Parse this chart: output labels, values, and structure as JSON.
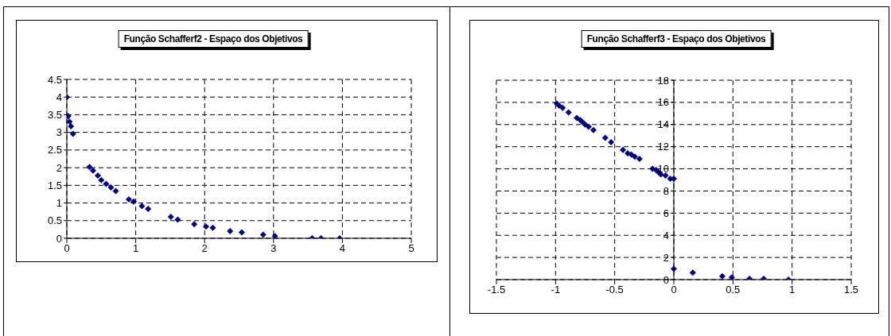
{
  "chart_data": [
    {
      "type": "scatter",
      "title": "Função Schafferf2 - Espaço dos Objetivos",
      "color": "#000080",
      "marker": "diamond",
      "grid": true,
      "x": [
        0,
        0.02,
        0.04,
        0.06,
        0.09,
        0.33,
        0.38,
        0.45,
        0.5,
        0.57,
        0.64,
        0.71,
        0.9,
        0.97,
        1.09,
        1.18,
        1.51,
        1.61,
        1.85,
        2.02,
        2.12,
        2.37,
        2.54,
        2.85,
        3.02,
        3.56,
        3.69,
        3.96
      ],
      "values": [
        4,
        3.46,
        3.3,
        3.17,
        2.96,
        2.02,
        1.92,
        1.78,
        1.65,
        1.54,
        1.44,
        1.34,
        1.1,
        1.04,
        0.91,
        0.83,
        0.61,
        0.53,
        0.4,
        0.33,
        0.3,
        0.2,
        0.17,
        0.1,
        0.06,
        0,
        0,
        0
      ],
      "xlim": [
        0,
        5
      ],
      "xticks": [
        0,
        1,
        2,
        3,
        4,
        5
      ],
      "ylim": [
        0,
        4.5
      ],
      "yticks": [
        0,
        0.5,
        1,
        1.5,
        2,
        2.5,
        3,
        3.5,
        4,
        4.5
      ]
    },
    {
      "type": "scatter",
      "title": "Função Schafferf3 - Espaço dos Objetivos",
      "color": "#000080",
      "marker": "diamond",
      "grid": true,
      "x": [
        -0.99,
        -0.97,
        -0.94,
        -0.89,
        -0.82,
        -0.79,
        -0.77,
        -0.75,
        -0.72,
        -0.68,
        -0.58,
        -0.53,
        -0.43,
        -0.39,
        -0.36,
        -0.33,
        -0.29,
        -0.18,
        -0.15,
        -0.13,
        -0.11,
        -0.07,
        -0.03,
        0,
        0,
        0.16,
        0.41,
        0.49,
        0.64,
        0.76,
        0.97
      ],
      "values": [
        15.9,
        15.7,
        15.5,
        15.1,
        14.6,
        14.4,
        14.2,
        14,
        13.8,
        13.5,
        12.8,
        12.4,
        11.7,
        11.4,
        11.3,
        11.1,
        10.9,
        10,
        9.9,
        9.7,
        9.5,
        9.4,
        9.1,
        9.1,
        0.97,
        0.62,
        0.3,
        0.2,
        0.07,
        0.07,
        0
      ],
      "xlim": [
        -1.5,
        1.5
      ],
      "xticks": [
        -1.5,
        -1,
        -0.5,
        0,
        0.5,
        1,
        1.5
      ],
      "ylim": [
        0,
        18
      ],
      "yticks": [
        0,
        2,
        4,
        6,
        8,
        10,
        12,
        14,
        16,
        18
      ]
    }
  ]
}
